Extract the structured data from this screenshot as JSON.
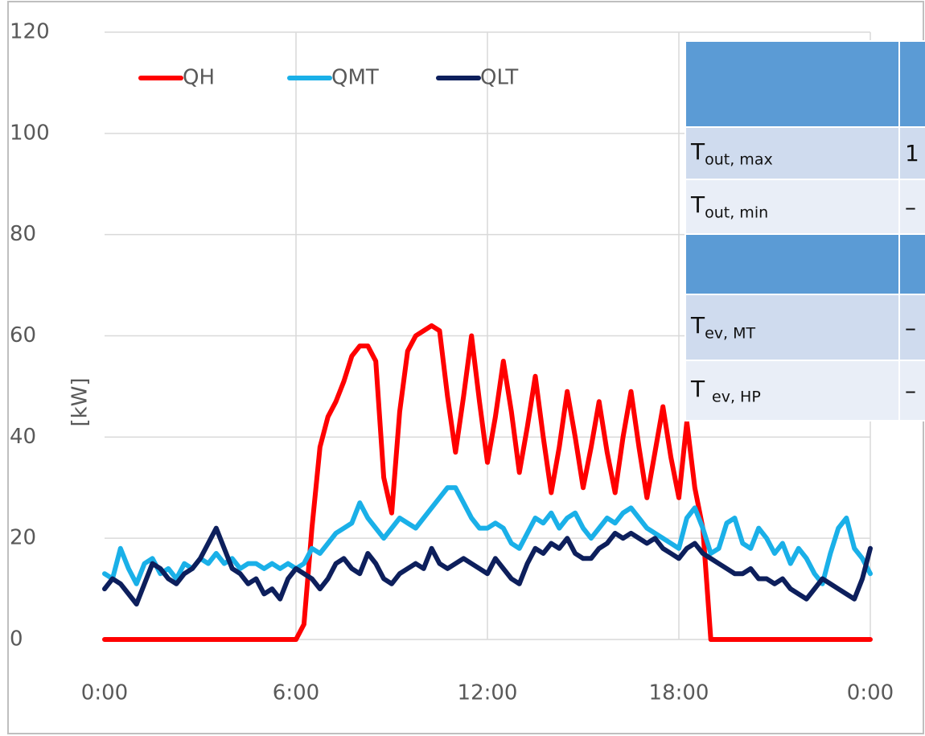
{
  "chart_data": {
    "type": "line",
    "ylabel": "[kW]",
    "xlim": [
      0,
      24
    ],
    "xticks": [
      {
        "value": 0,
        "label": "0:00"
      },
      {
        "value": 6,
        "label": "6:00"
      },
      {
        "value": 12,
        "label": "12:00"
      },
      {
        "value": 18,
        "label": "18:00"
      },
      {
        "value": 24,
        "label": "0:00"
      }
    ],
    "ylim": [
      0,
      120
    ],
    "yticks": [
      0,
      20,
      40,
      60,
      80,
      100,
      120
    ],
    "grid": true,
    "legend": "top-left",
    "x": [
      0,
      0.25,
      0.5,
      0.75,
      1,
      1.25,
      1.5,
      1.75,
      2,
      2.25,
      2.5,
      2.75,
      3,
      3.25,
      3.5,
      3.75,
      4,
      4.25,
      4.5,
      4.75,
      5,
      5.25,
      5.5,
      5.75,
      6,
      6.25,
      6.5,
      6.75,
      7,
      7.25,
      7.5,
      7.75,
      8,
      8.25,
      8.5,
      8.75,
      9,
      9.25,
      9.5,
      9.75,
      10,
      10.25,
      10.5,
      10.75,
      11,
      11.25,
      11.5,
      11.75,
      12,
      12.25,
      12.5,
      12.75,
      13,
      13.25,
      13.5,
      13.75,
      14,
      14.25,
      14.5,
      14.75,
      15,
      15.25,
      15.5,
      15.75,
      16,
      16.25,
      16.5,
      16.75,
      17,
      17.25,
      17.5,
      17.75,
      18,
      18.25,
      18.5,
      18.75,
      19,
      19.25,
      19.5,
      19.75,
      20,
      20.25,
      20.5,
      20.75,
      21,
      21.25,
      21.5,
      21.75,
      22,
      22.25,
      22.5,
      22.75,
      23,
      23.25,
      23.5,
      23.75,
      24
    ],
    "series": [
      {
        "name": "QH",
        "color": "#ff0000",
        "values": [
          0,
          0,
          0,
          0,
          0,
          0,
          0,
          0,
          0,
          0,
          0,
          0,
          0,
          0,
          0,
          0,
          0,
          0,
          0,
          0,
          0,
          0,
          0,
          0,
          0,
          3,
          22,
          38,
          44,
          47,
          51,
          56,
          58,
          58,
          55,
          32,
          25,
          45,
          57,
          60,
          61,
          62,
          61,
          48,
          37,
          48,
          60,
          47,
          35,
          44,
          55,
          45,
          33,
          42,
          52,
          40,
          29,
          38,
          49,
          40,
          30,
          38,
          47,
          37,
          29,
          40,
          49,
          38,
          28,
          37,
          46,
          36,
          28,
          43,
          30,
          22,
          0,
          0,
          0,
          0,
          0,
          0,
          0,
          0,
          0,
          0,
          0,
          0,
          0,
          0,
          0,
          0,
          0,
          0,
          0,
          0,
          0
        ]
      },
      {
        "name": "QMT",
        "color": "#1ab0e8",
        "values": [
          13,
          12,
          18,
          14,
          11,
          15,
          16,
          13,
          14,
          12,
          15,
          14,
          16,
          15,
          17,
          15,
          16,
          14,
          15,
          15,
          14,
          15,
          14,
          15,
          14,
          15,
          18,
          17,
          19,
          21,
          22,
          23,
          27,
          24,
          22,
          20,
          22,
          24,
          23,
          22,
          24,
          26,
          28,
          30,
          30,
          27,
          24,
          22,
          22,
          23,
          22,
          19,
          18,
          21,
          24,
          23,
          25,
          22,
          24,
          25,
          22,
          20,
          22,
          24,
          23,
          25,
          26,
          24,
          22,
          21,
          20,
          19,
          18,
          24,
          26,
          22,
          17,
          18,
          23,
          24,
          19,
          18,
          22,
          20,
          17,
          19,
          15,
          18,
          16,
          13,
          11,
          17,
          22,
          24,
          18,
          16,
          13
        ]
      },
      {
        "name": "QLT",
        "color": "#0d1f5c",
        "values": [
          10,
          12,
          11,
          9,
          7,
          11,
          15,
          14,
          12,
          11,
          13,
          14,
          16,
          19,
          22,
          18,
          14,
          13,
          11,
          12,
          9,
          10,
          8,
          12,
          14,
          13,
          12,
          10,
          12,
          15,
          16,
          14,
          13,
          17,
          15,
          12,
          11,
          13,
          14,
          15,
          14,
          18,
          15,
          14,
          15,
          16,
          15,
          14,
          13,
          16,
          14,
          12,
          11,
          15,
          18,
          17,
          19,
          18,
          20,
          17,
          16,
          16,
          18,
          19,
          21,
          20,
          21,
          20,
          19,
          20,
          18,
          17,
          16,
          18,
          19,
          17,
          16,
          15,
          14,
          13,
          13,
          14,
          12,
          12,
          11,
          12,
          10,
          9,
          8,
          10,
          12,
          11,
          10,
          9,
          8,
          12,
          18
        ]
      }
    ]
  },
  "table": {
    "rows": [
      {
        "symbol": "T",
        "subscript": "out, max",
        "value": "1"
      },
      {
        "symbol": "T",
        "subscript": "out, min",
        "value": "–"
      },
      {
        "symbol": "T",
        "subscript": "ev, MT",
        "value": "–"
      },
      {
        "symbol": "T ",
        "subscript": "ev, HP",
        "value": "–"
      }
    ]
  }
}
